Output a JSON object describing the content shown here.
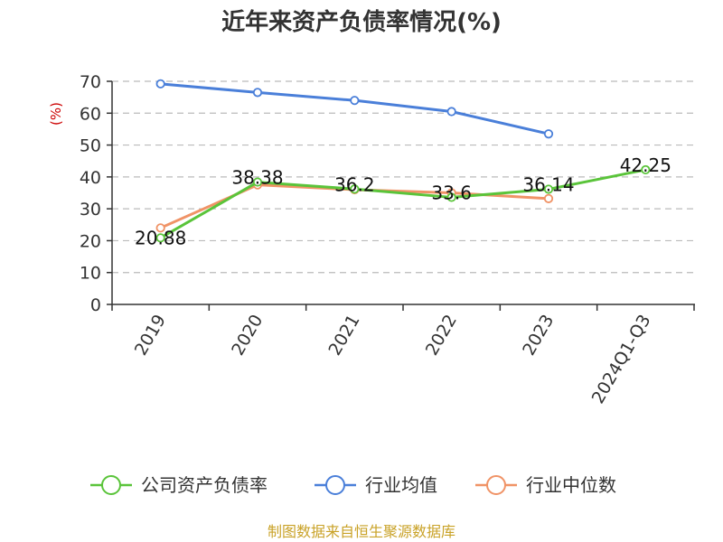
{
  "chart_data": {
    "type": "line",
    "title": "近年来资产负债率情况(%)",
    "ylabel": "(%)",
    "xlabel": "",
    "categories": [
      "2019",
      "2020",
      "2021",
      "2022",
      "2023",
      "2024Q1-Q3"
    ],
    "ylim": [
      0,
      70
    ],
    "yticks": [
      0,
      10,
      20,
      30,
      40,
      50,
      60,
      70
    ],
    "grid": true,
    "grid_style": "dashed",
    "legend_position": "bottom",
    "series": [
      {
        "name": "公司资产负债率",
        "color": "#5ac43a",
        "values": [
          20.88,
          38.38,
          36.2,
          33.6,
          36.14,
          42.25
        ],
        "labels": [
          "20.88",
          "38.38",
          "36.2",
          "33.6",
          "36.14",
          "42.25"
        ]
      },
      {
        "name": "行业均值",
        "color": "#4a7fd9",
        "values": [
          69.2,
          66.5,
          64.0,
          60.5,
          53.5,
          null
        ],
        "labels": null
      },
      {
        "name": "行业中位数",
        "color": "#f09366",
        "values": [
          24.0,
          37.5,
          36.0,
          35.0,
          33.2,
          null
        ],
        "labels": null
      }
    ]
  },
  "colors": {
    "title": "#333333",
    "axis": "#333333",
    "grid": "#bbbbbb",
    "ylabel": "#cc0000",
    "source": "#c9a227"
  },
  "source_text": "制图数据来自恒生聚源数据库"
}
